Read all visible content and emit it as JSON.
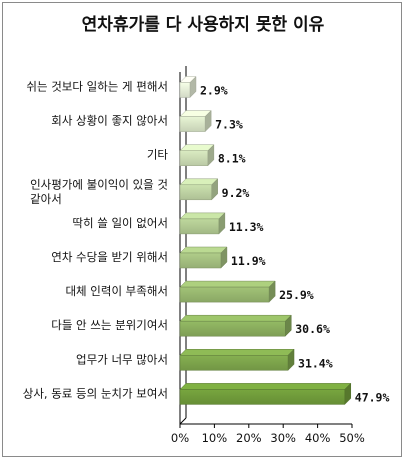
{
  "chart_data": {
    "type": "bar",
    "orientation": "horizontal",
    "title": "연차휴가를 다 사용하지 못한 이유",
    "categories": [
      "쉬는 것보다 일하는 게 편해서",
      "회사 상황이 좋지 않아서",
      "기타",
      "인사평가에 불이익이 있을 것 같아서",
      "딱히 쓸 일이 없어서",
      "연차 수당을 받기 위해서",
      "대체 인력이 부족해서",
      "다들 안 쓰는 분위기여서",
      "업무가 너무 많아서",
      "상사, 동료 등의 눈치가 보여서"
    ],
    "values": [
      2.9,
      7.3,
      8.1,
      9.2,
      11.3,
      11.9,
      25.9,
      30.6,
      31.4,
      47.9
    ],
    "value_labels": [
      "2.9%",
      "7.3%",
      "8.1%",
      "9.2%",
      "11.3%",
      "11.9%",
      "25.9%",
      "30.6%",
      "31.4%",
      "47.9%"
    ],
    "x_ticks": [
      "0%",
      "10%",
      "20%",
      "30%",
      "40%",
      "50%"
    ],
    "xlim": [
      0,
      50
    ],
    "grid": false,
    "legend": "none",
    "colors": {
      "light": "#e4ecd6",
      "dark": "#6f9a3a"
    }
  }
}
